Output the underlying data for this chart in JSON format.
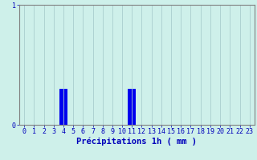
{
  "hours": [
    0,
    1,
    2,
    3,
    4,
    5,
    6,
    7,
    8,
    9,
    10,
    11,
    12,
    13,
    14,
    15,
    16,
    17,
    18,
    19,
    20,
    21,
    22,
    23
  ],
  "values": [
    0,
    0,
    0,
    0,
    0.3,
    0,
    0,
    0,
    0,
    0,
    0,
    0.3,
    0,
    0,
    0,
    0,
    0,
    0,
    0,
    0,
    0,
    0,
    0,
    0
  ],
  "bar_color": "#0000ee",
  "background_color": "#cef0ea",
  "grid_color": "#aacece",
  "axis_color": "#808080",
  "text_color": "#0000bb",
  "xlabel": "Précipitations 1h ( mm )",
  "ylim": [
    0,
    1.0
  ],
  "yticks": [
    0,
    1
  ],
  "xlabel_fontsize": 7.5,
  "tick_fontsize": 6.0
}
